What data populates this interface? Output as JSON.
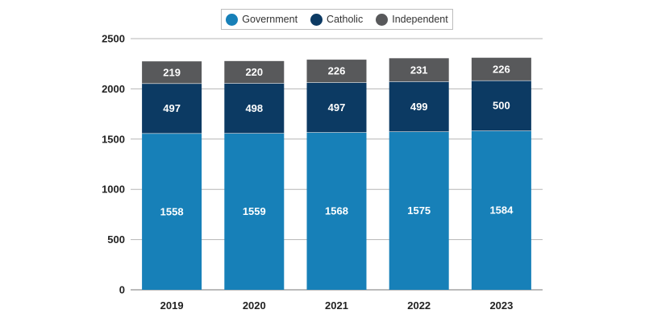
{
  "chart_data": {
    "type": "bar",
    "stacked": true,
    "categories": [
      "2019",
      "2020",
      "2021",
      "2022",
      "2023"
    ],
    "series": [
      {
        "name": "Government",
        "color": "#1780b8",
        "values": [
          1558,
          1559,
          1568,
          1575,
          1584
        ]
      },
      {
        "name": "Catholic",
        "color": "#0c3a63",
        "values": [
          497,
          498,
          497,
          499,
          500
        ]
      },
      {
        "name": "Independent",
        "color": "#58595b",
        "values": [
          219,
          220,
          226,
          231,
          226
        ]
      }
    ],
    "title": "",
    "xlabel": "",
    "ylabel": "",
    "ylim": [
      0,
      2500
    ],
    "yticks": [
      "0",
      "500",
      "1000",
      "1500",
      "2000",
      "2500"
    ],
    "grid": true,
    "legend_position": "top-center"
  }
}
